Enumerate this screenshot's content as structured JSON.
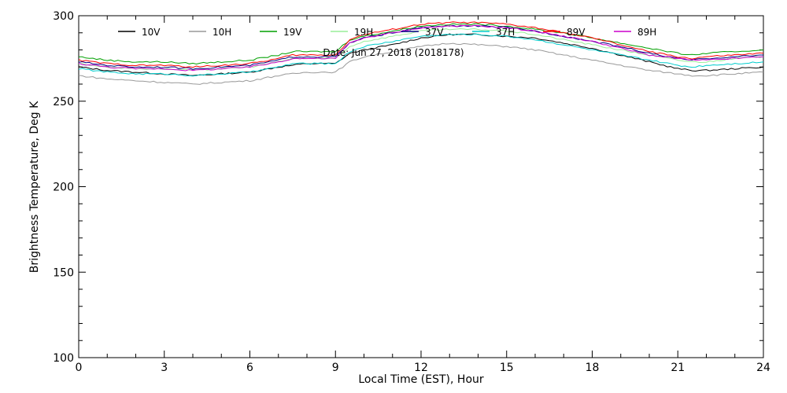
{
  "chart_data": {
    "type": "line",
    "title": "",
    "annotation": "Date: Jun 27, 2018 (2018178)",
    "xlabel": "Local Time (EST), Hour",
    "ylabel": "Brightness Temperature, Deg K",
    "xlim": [
      0,
      24
    ],
    "ylim": [
      100,
      300
    ],
    "xticks": [
      0,
      3,
      6,
      9,
      12,
      15,
      18,
      21,
      24
    ],
    "yticks": [
      100,
      150,
      200,
      250,
      300
    ],
    "grid": false,
    "legend_position": "top",
    "x": [
      0,
      1,
      2,
      3,
      4,
      5,
      6,
      7,
      7.5,
      8,
      8.5,
      9,
      9.5,
      10,
      11,
      12,
      13,
      14,
      15,
      16,
      17,
      18,
      19,
      20,
      21,
      21.5,
      22,
      23,
      24
    ],
    "series": [
      {
        "name": "10V",
        "color": "#000000",
        "values": [
          270,
          268,
          267,
          266,
          265,
          266,
          267,
          270,
          271,
          272,
          272,
          272,
          278,
          280,
          283,
          287,
          289,
          289,
          288,
          287,
          284,
          281,
          277,
          273,
          269,
          268,
          268,
          269,
          270
        ]
      },
      {
        "name": "10H",
        "color": "#999999",
        "values": [
          265,
          263,
          262,
          261,
          260,
          261,
          262,
          265,
          266,
          267,
          267,
          267,
          273,
          276,
          279,
          282,
          284,
          283,
          282,
          280,
          277,
          274,
          271,
          268,
          266,
          265,
          265,
          266,
          267
        ]
      },
      {
        "name": "19V",
        "color": "#00a000",
        "values": [
          276,
          274,
          273,
          273,
          272,
          273,
          274,
          277,
          279,
          279,
          279,
          279,
          286,
          288,
          291,
          294,
          295,
          295,
          294,
          292,
          290,
          287,
          284,
          281,
          278,
          277,
          278,
          279,
          280
        ]
      },
      {
        "name": "19H",
        "color": "#99ee99",
        "values": [
          272,
          270,
          269,
          269,
          268,
          269,
          270,
          273,
          275,
          275,
          275,
          275,
          282,
          285,
          288,
          291,
          292,
          292,
          291,
          289,
          286,
          283,
          280,
          277,
          274,
          273,
          273,
          275,
          276
        ]
      },
      {
        "name": "37V",
        "color": "#000080",
        "values": [
          273,
          271,
          270,
          270,
          269,
          270,
          271,
          274,
          276,
          276,
          276,
          276,
          284,
          287,
          290,
          293,
          294,
          294,
          293,
          291,
          288,
          285,
          282,
          278,
          275,
          274,
          275,
          276,
          277
        ]
      },
      {
        "name": "37H",
        "color": "#00cccc",
        "values": [
          269,
          267,
          266,
          266,
          265,
          266,
          267,
          270,
          272,
          272,
          272,
          272,
          279,
          282,
          285,
          288,
          289,
          289,
          288,
          286,
          283,
          280,
          277,
          274,
          271,
          270,
          271,
          272,
          273
        ]
      },
      {
        "name": "89V",
        "color": "#ff0000",
        "values": [
          274,
          272,
          271,
          271,
          270,
          271,
          272,
          275,
          277,
          277,
          277,
          277,
          286,
          289,
          292,
          295,
          296,
          296,
          295,
          293,
          290,
          287,
          283,
          279,
          276,
          275,
          276,
          277,
          278
        ]
      },
      {
        "name": "89H",
        "color": "#cc00cc",
        "values": [
          272,
          270,
          269,
          269,
          268,
          269,
          270,
          273,
          275,
          275,
          275,
          275,
          284,
          287,
          290,
          293,
          294,
          294,
          293,
          291,
          288,
          285,
          281,
          277,
          275,
          274,
          274,
          275,
          276
        ]
      }
    ]
  }
}
